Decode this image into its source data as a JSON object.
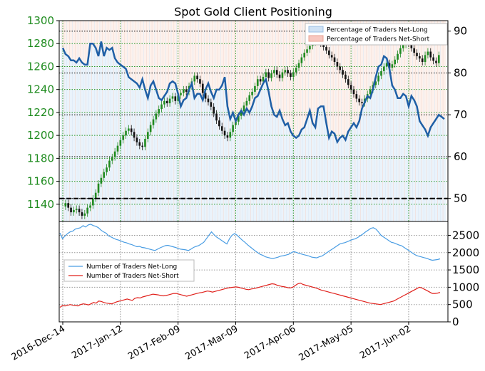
{
  "chart_data": [
    {
      "type": "line",
      "title": "Spot Gold Client Positioning",
      "left_axis": {
        "ticks": [
          1140,
          1160,
          1180,
          1200,
          1220,
          1240,
          1260,
          1280,
          1300
        ],
        "range": [
          1125,
          1300
        ]
      },
      "right_axis": {
        "ticks": [
          50,
          60,
          70,
          80,
          90
        ],
        "range": [
          44.5,
          92.5
        ]
      },
      "legend": {
        "placement": "top-right",
        "entries": [
          "Percentage of Traders Net-Long",
          "Percentage of Traders Net-Short"
        ]
      },
      "x_labels": [
        "2016-Dec-14",
        "2017-Jan-12",
        "2017-Feb-09",
        "2017-Mar-09",
        "2017-Apr-06",
        "2017-May-05",
        "2017-Jun-02"
      ],
      "series": [
        {
          "name": "Percentage of Traders Net-Long",
          "axis": "right",
          "color": "#1f5fa6",
          "values": [
            86,
            84.5,
            84,
            83,
            83,
            82.5,
            83.5,
            82.5,
            82,
            82,
            87,
            87,
            86,
            84,
            87.5,
            84,
            86,
            85.5,
            86,
            83.5,
            82.5,
            82,
            81.5,
            81,
            79,
            78.5,
            78,
            77.5,
            76.5,
            78.5,
            76,
            74,
            77,
            78,
            76,
            74,
            73.5,
            74.5,
            75.5,
            77.5,
            78,
            77.5,
            75,
            72,
            73.5,
            74,
            76,
            77.5,
            74,
            75,
            75,
            73.5,
            76,
            77.5,
            75.5,
            74,
            76,
            76,
            77,
            79,
            72,
            69,
            70.5,
            68.5,
            70,
            71,
            70,
            71.5,
            70.5,
            72,
            74,
            74.5,
            76,
            77.5,
            78.5,
            75.5,
            72,
            70,
            69.5,
            71,
            69,
            67.5,
            68,
            66,
            65,
            64.5,
            65,
            66.5,
            67,
            69,
            71,
            68,
            67,
            71.5,
            72,
            72,
            68,
            64.5,
            66,
            65.5,
            63.5,
            64.5,
            65,
            64,
            66,
            67,
            68,
            67,
            68.5,
            71.5,
            73,
            74.5,
            74,
            76,
            79,
            81.5,
            82,
            84,
            83.5,
            81,
            77,
            76,
            74,
            74,
            75,
            74.5,
            72,
            74.5,
            73.5,
            72,
            68.5,
            67.5,
            66.5,
            65,
            67,
            68,
            69,
            70,
            69.5,
            69
          ]
        },
        {
          "name": "Spot Gold",
          "axis": "left",
          "type": "candlestick",
          "values": [
            1138,
            1141,
            1137,
            1133,
            1135,
            1136,
            1133,
            1130,
            1132,
            1137,
            1139,
            1145,
            1150,
            1158,
            1163,
            1168,
            1172,
            1178,
            1181,
            1186,
            1191,
            1196,
            1200,
            1204,
            1206,
            1203,
            1198,
            1194,
            1191,
            1190,
            1197,
            1203,
            1209,
            1214,
            1219,
            1223,
            1227,
            1230,
            1228,
            1232,
            1234,
            1230,
            1235,
            1237,
            1240,
            1238,
            1243,
            1247,
            1252,
            1249,
            1245,
            1237,
            1232,
            1229,
            1225,
            1219,
            1213,
            1208,
            1204,
            1200,
            1198,
            1203,
            1209,
            1212,
            1217,
            1221,
            1226,
            1230,
            1235,
            1238,
            1243,
            1249,
            1247,
            1251,
            1255,
            1250,
            1254,
            1257,
            1253,
            1250,
            1255,
            1257,
            1254,
            1251,
            1255,
            1259,
            1263,
            1268,
            1272,
            1275,
            1278,
            1281,
            1286,
            1283,
            1280,
            1277,
            1274,
            1270,
            1268,
            1264,
            1260,
            1257,
            1253,
            1249,
            1244,
            1240,
            1236,
            1232,
            1229,
            1228,
            1232,
            1236,
            1240,
            1244,
            1247,
            1252,
            1256,
            1260,
            1263,
            1259,
            1262,
            1266,
            1271,
            1276,
            1279,
            1283,
            1280,
            1276,
            1272,
            1269,
            1267,
            1264,
            1270,
            1273,
            1268,
            1265,
            1263,
            1270
          ]
        }
      ]
    },
    {
      "type": "line",
      "axis": {
        "ticks": [
          0,
          500,
          1000,
          1500,
          2000,
          2500
        ],
        "range": [
          0,
          2900
        ]
      },
      "legend": {
        "placement": "lower-left",
        "entries": [
          "Number of Traders Net-Long",
          "Number of Traders Net-Short"
        ]
      },
      "series": [
        {
          "name": "Number of Traders Net-Long",
          "color": "#4a9de3",
          "values": [
            2570,
            2400,
            2480,
            2550,
            2600,
            2620,
            2680,
            2700,
            2720,
            2780,
            2740,
            2800,
            2820,
            2780,
            2760,
            2720,
            2650,
            2600,
            2560,
            2480,
            2450,
            2410,
            2380,
            2360,
            2330,
            2300,
            2280,
            2250,
            2230,
            2200,
            2170,
            2180,
            2150,
            2140,
            2120,
            2100,
            2080,
            2060,
            2100,
            2140,
            2170,
            2200,
            2210,
            2190,
            2170,
            2150,
            2120,
            2100,
            2090,
            2080,
            2060,
            2100,
            2150,
            2180,
            2200,
            2250,
            2300,
            2400,
            2500,
            2600,
            2520,
            2450,
            2400,
            2350,
            2300,
            2250,
            2400,
            2500,
            2550,
            2500,
            2430,
            2360,
            2300,
            2230,
            2170,
            2110,
            2050,
            2000,
            1950,
            1920,
            1880,
            1860,
            1840,
            1830,
            1850,
            1870,
            1900,
            1910,
            1930,
            1950,
            1990,
            2030,
            2010,
            1980,
            1960,
            1940,
            1920,
            1900,
            1870,
            1860,
            1850,
            1880,
            1900,
            1950,
            2000,
            2050,
            2100,
            2150,
            2200,
            2250,
            2270,
            2290,
            2320,
            2350,
            2380,
            2400,
            2440,
            2490,
            2540,
            2600,
            2650,
            2700,
            2720,
            2680,
            2600,
            2500,
            2450,
            2400,
            2350,
            2300,
            2280,
            2250,
            2220,
            2200,
            2150,
            2100,
            2050,
            2000,
            1950,
            1910,
            1890,
            1870,
            1850,
            1830,
            1800,
            1780,
            1790,
            1800,
            1820
          ]
        },
        {
          "name": "Number of Traders Net-Short",
          "color": "#e0201b",
          "values": [
            420,
            470,
            460,
            480,
            500,
            480,
            470,
            460,
            500,
            520,
            510,
            490,
            520,
            560,
            540,
            600,
            590,
            560,
            540,
            530,
            520,
            550,
            580,
            600,
            620,
            640,
            660,
            640,
            620,
            680,
            700,
            690,
            720,
            740,
            760,
            780,
            800,
            790,
            780,
            760,
            750,
            760,
            780,
            800,
            820,
            820,
            800,
            780,
            760,
            740,
            760,
            780,
            800,
            820,
            840,
            850,
            870,
            890,
            880,
            860,
            880,
            900,
            920,
            940,
            960,
            980,
            990,
            1000,
            1010,
            1000,
            980,
            960,
            940,
            930,
            950,
            960,
            980,
            1000,
            1020,
            1040,
            1060,
            1080,
            1100,
            1090,
            1060,
            1040,
            1020,
            1010,
            990,
            980,
            1000,
            1050,
            1100,
            1120,
            1080,
            1060,
            1040,
            1020,
            1000,
            980,
            950,
            920,
            900,
            880,
            860,
            840,
            820,
            800,
            780,
            760,
            740,
            720,
            700,
            680,
            660,
            640,
            620,
            600,
            580,
            560,
            540,
            530,
            520,
            510,
            500,
            520,
            540,
            560,
            580,
            600,
            640,
            680,
            720,
            760,
            800,
            840,
            880,
            920,
            960,
            1000,
            980,
            940,
            900,
            860,
            820,
            820,
            830,
            850
          ]
        }
      ]
    }
  ]
}
